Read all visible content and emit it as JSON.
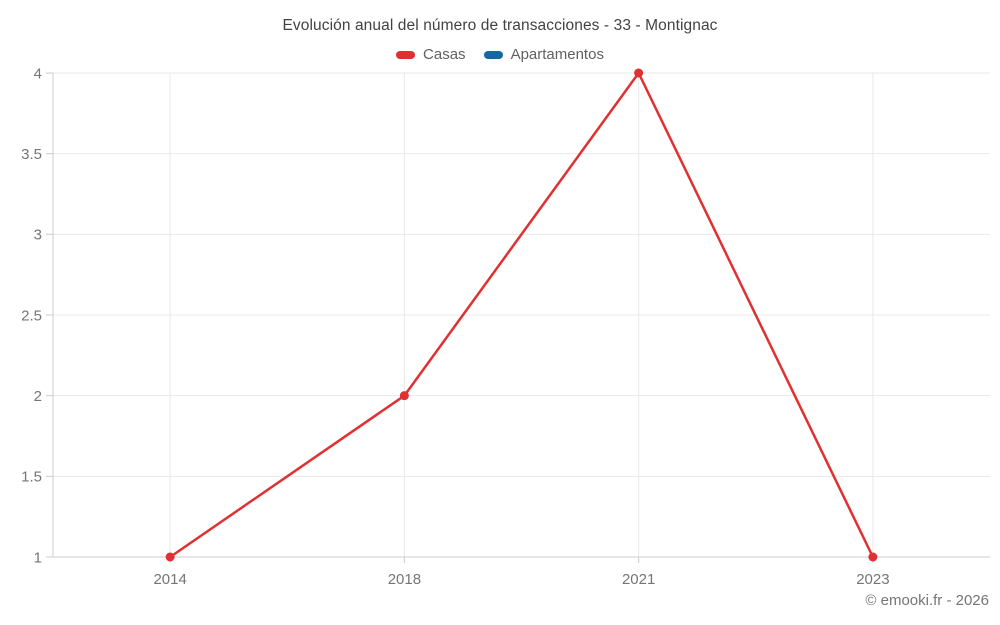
{
  "title": "Evolución anual del número de transacciones - 33 - Montignac",
  "watermark": "© emooki.fr - 2026",
  "colors": {
    "casas": "#e03032",
    "apartamentos": "#1269a2",
    "gridline": "#e9e9e9",
    "axis": "#cccccc",
    "tick_text": "#757575",
    "title_text": "#424242",
    "background": "#ffffff"
  },
  "legend": [
    {
      "label": "Casas",
      "color": "#e03032"
    },
    {
      "label": "Apartamentos",
      "color": "#1269a2"
    }
  ],
  "chart_data": {
    "type": "line",
    "title": "Evolución anual del número de transacciones - 33 - Montignac",
    "categories": [
      "2014",
      "2018",
      "2021",
      "2023"
    ],
    "series": [
      {
        "name": "Casas",
        "color": "#e03032",
        "values": [
          1,
          2,
          4,
          1
        ]
      },
      {
        "name": "Apartamentos",
        "color": "#1269a2",
        "values": []
      }
    ],
    "xlabel": "",
    "ylabel": "",
    "ylim": [
      1,
      4
    ],
    "yticks": [
      1,
      1.5,
      2,
      2.5,
      3,
      3.5,
      4
    ],
    "grid": true,
    "legend_position": "top",
    "marker_radius": 4.5,
    "line_width": 2.5
  }
}
